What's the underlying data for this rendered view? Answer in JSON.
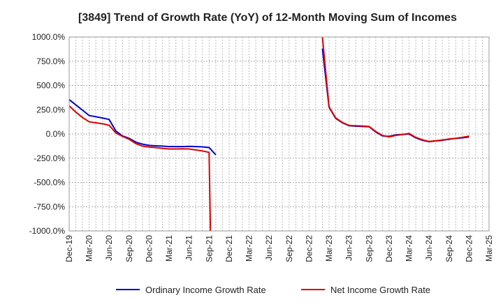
{
  "chart_data": {
    "type": "line",
    "title": "[3849]  Trend of Growth Rate (YoY) of 12-Month Moving Sum of Incomes",
    "xlabel": "",
    "ylabel": "",
    "ylim": [
      -1000,
      1000
    ],
    "yticks": [
      1000,
      750,
      500,
      250,
      0,
      -250,
      -500,
      -750,
      -1000
    ],
    "ytick_labels": [
      "1000.0%",
      "750.0%",
      "500.0%",
      "250.0%",
      "0.0%",
      "-250.0%",
      "-500.0%",
      "-750.0%",
      "-1000.0%"
    ],
    "xtick_labels": [
      "Dec-19",
      "Mar-20",
      "Jun-20",
      "Sep-20",
      "Dec-20",
      "Mar-21",
      "Jun-21",
      "Sep-21",
      "Dec-21",
      "Mar-22",
      "Jun-22",
      "Sep-22",
      "Dec-22",
      "Mar-23",
      "Jun-23",
      "Sep-23",
      "Dec-23",
      "Mar-24",
      "Jun-24",
      "Sep-24",
      "Dec-24",
      "Mar-25"
    ],
    "grid": true,
    "legend_position": "bottom",
    "series": [
      {
        "name": "Ordinary Income Growth Rate",
        "color": "#0000cc",
        "points": [
          [
            "Dec-19",
            355
          ],
          [
            "Jan-20",
            300
          ],
          [
            "Feb-20",
            245
          ],
          [
            "Mar-20",
            190
          ],
          [
            "Apr-20",
            178
          ],
          [
            "May-20",
            165
          ],
          [
            "Jun-20",
            150
          ],
          [
            "Jul-20",
            30
          ],
          [
            "Aug-20",
            -20
          ],
          [
            "Sep-20",
            -45
          ],
          [
            "Oct-20",
            -85
          ],
          [
            "Nov-20",
            -105
          ],
          [
            "Dec-20",
            -118
          ],
          [
            "Jan-21",
            -122
          ],
          [
            "Feb-21",
            -125
          ],
          [
            "Mar-21",
            -130
          ],
          [
            "Apr-21",
            -130
          ],
          [
            "May-21",
            -130
          ],
          [
            "Jun-21",
            -128
          ],
          [
            "Jul-21",
            -130
          ],
          [
            "Aug-21",
            -133
          ],
          [
            "Sep-21",
            -140
          ],
          [
            "Oct-21",
            -215
          ],
          [
            "Feb-23",
            880
          ],
          [
            "Mar-23",
            275
          ],
          [
            "Apr-23",
            160
          ],
          [
            "May-23",
            115
          ],
          [
            "Jun-23",
            85
          ],
          [
            "Jul-23",
            80
          ],
          [
            "Aug-23",
            78
          ],
          [
            "Sep-23",
            75
          ],
          [
            "Oct-23",
            20
          ],
          [
            "Nov-23",
            -20
          ],
          [
            "Dec-23",
            -25
          ],
          [
            "Jan-24",
            -10
          ],
          [
            "Feb-24",
            -5
          ],
          [
            "Mar-24",
            0
          ],
          [
            "Apr-24",
            -40
          ],
          [
            "May-24",
            -65
          ],
          [
            "Jun-24",
            -80
          ],
          [
            "Jul-24",
            -72
          ],
          [
            "Aug-24",
            -65
          ],
          [
            "Sep-24",
            -55
          ],
          [
            "Oct-24",
            -45
          ],
          [
            "Nov-24",
            -40
          ],
          [
            "Dec-24",
            -30
          ]
        ]
      },
      {
        "name": "Net Income Growth Rate",
        "color": "#dd0000",
        "points": [
          [
            "Dec-19",
            290
          ],
          [
            "Jan-20",
            225
          ],
          [
            "Feb-20",
            170
          ],
          [
            "Mar-20",
            125
          ],
          [
            "Apr-20",
            115
          ],
          [
            "May-20",
            105
          ],
          [
            "Jun-20",
            90
          ],
          [
            "Jul-20",
            10
          ],
          [
            "Aug-20",
            -25
          ],
          [
            "Sep-20",
            -55
          ],
          [
            "Oct-20",
            -100
          ],
          [
            "Nov-20",
            -125
          ],
          [
            "Dec-20",
            -135
          ],
          [
            "Jan-21",
            -140
          ],
          [
            "Feb-21",
            -148
          ],
          [
            "Mar-21",
            -155
          ],
          [
            "Apr-21",
            -155
          ],
          [
            "May-21",
            -153
          ],
          [
            "Jun-21",
            -155
          ],
          [
            "Jul-21",
            -165
          ],
          [
            "Aug-21",
            -175
          ],
          [
            "Sep-21",
            -190
          ],
          [
            "Sep-21b",
            -1000
          ],
          [
            "Feb-23",
            1000
          ],
          [
            "Mar-23",
            280
          ],
          [
            "Apr-23",
            165
          ],
          [
            "May-23",
            118
          ],
          [
            "Jun-23",
            88
          ],
          [
            "Jul-23",
            85
          ],
          [
            "Aug-23",
            82
          ],
          [
            "Sep-23",
            78
          ],
          [
            "Oct-23",
            25
          ],
          [
            "Nov-23",
            -15
          ],
          [
            "Dec-23",
            -30
          ],
          [
            "Jan-24",
            -15
          ],
          [
            "Feb-24",
            -5
          ],
          [
            "Mar-24",
            5
          ],
          [
            "Apr-24",
            -35
          ],
          [
            "May-24",
            -60
          ],
          [
            "Jun-24",
            -78
          ],
          [
            "Jul-24",
            -70
          ],
          [
            "Aug-24",
            -62
          ],
          [
            "Sep-24",
            -52
          ],
          [
            "Oct-24",
            -45
          ],
          [
            "Nov-24",
            -35
          ],
          [
            "Dec-24",
            -22
          ]
        ]
      }
    ]
  }
}
